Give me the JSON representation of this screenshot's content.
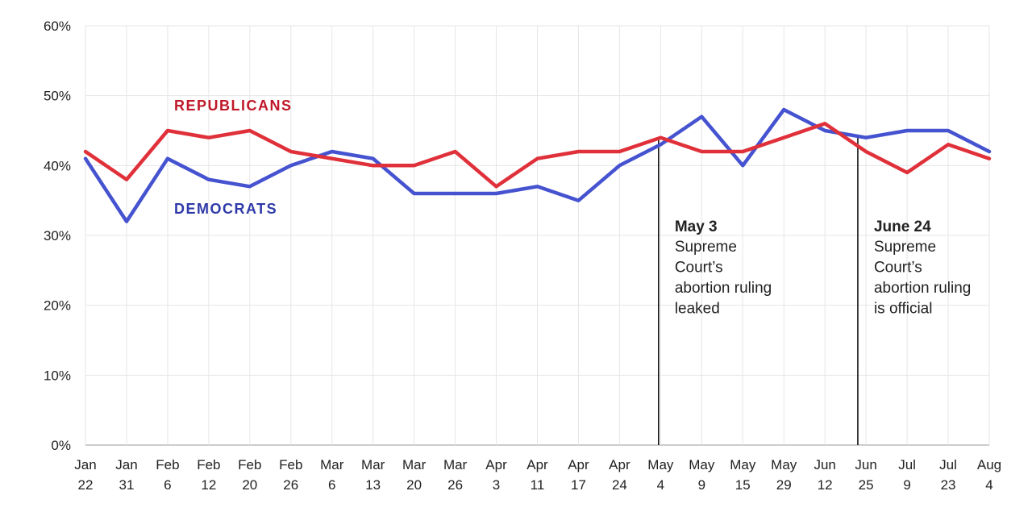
{
  "chart_data": {
    "type": "line",
    "title": "",
    "xlabel": "",
    "ylabel": "",
    "ylim": [
      0,
      60
    ],
    "yticks": [
      "0%",
      "10%",
      "20%",
      "30%",
      "40%",
      "50%",
      "60%"
    ],
    "grid": true,
    "categories": [
      [
        "Jan",
        "22"
      ],
      [
        "Jan",
        "31"
      ],
      [
        "Feb",
        "6"
      ],
      [
        "Feb",
        "12"
      ],
      [
        "Feb",
        "20"
      ],
      [
        "Feb",
        "26"
      ],
      [
        "Mar",
        "6"
      ],
      [
        "Mar",
        "13"
      ],
      [
        "Mar",
        "20"
      ],
      [
        "Mar",
        "26"
      ],
      [
        "Apr",
        "3"
      ],
      [
        "Apr",
        "11"
      ],
      [
        "Apr",
        "17"
      ],
      [
        "Apr",
        "24"
      ],
      [
        "May",
        "4"
      ],
      [
        "May",
        "9"
      ],
      [
        "May",
        "15"
      ],
      [
        "May",
        "29"
      ],
      [
        "Jun",
        "12"
      ],
      [
        "Jun",
        "25"
      ],
      [
        "Jul",
        "9"
      ],
      [
        "Jul",
        "23"
      ],
      [
        "Aug",
        "4"
      ]
    ],
    "series": [
      {
        "name": "REPUBLICANS",
        "color": "#e0303a",
        "values": [
          42,
          38,
          45,
          44,
          45,
          42,
          41,
          40,
          40,
          42,
          37,
          41,
          42,
          42,
          44,
          42,
          42,
          44,
          46,
          42,
          39,
          43,
          41
        ]
      },
      {
        "name": "DEMOCRATS",
        "color": "#4653d0",
        "values": [
          41,
          32,
          41,
          38,
          37,
          40,
          42,
          41,
          36,
          36,
          36,
          37,
          35,
          40,
          43,
          47,
          40,
          48,
          45,
          44,
          45,
          45,
          42
        ]
      }
    ],
    "annotations": [
      {
        "title": "May 3",
        "lines": [
          "Supreme",
          "Court’s",
          "abortion ruling",
          "leaked"
        ],
        "x_index": 13.95
      },
      {
        "title": "June 24",
        "lines": [
          "Supreme",
          "Court’s",
          "abortion ruling",
          "is official"
        ],
        "x_index": 18.8
      }
    ],
    "series_label_colors": {
      "REPUBLICANS": "#c0182a",
      "DEMOCRATS": "#2f3aa8"
    }
  }
}
